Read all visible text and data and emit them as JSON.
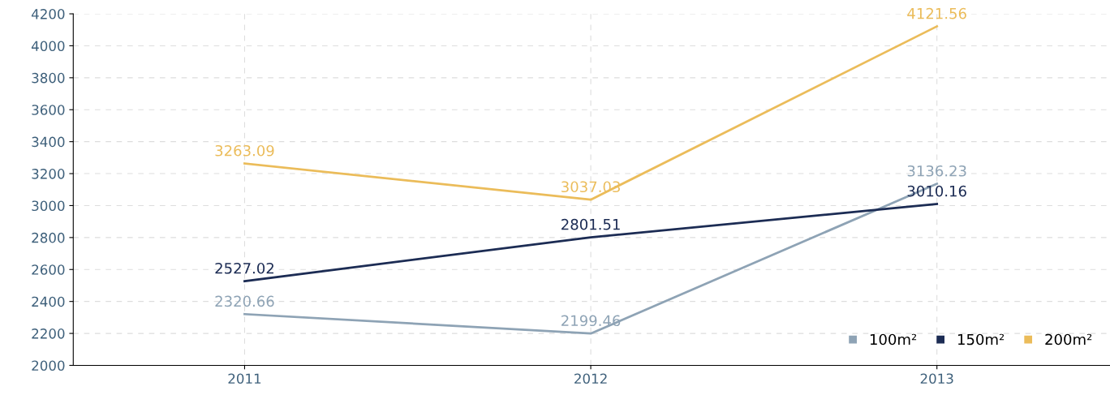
{
  "chart_data": {
    "type": "line",
    "categories": [
      "2011",
      "2012",
      "2013"
    ],
    "series": [
      {
        "name": "100m²",
        "color": "#8ea3b5",
        "values": [
          2320.66,
          2199.46,
          3136.23
        ]
      },
      {
        "name": "150m²",
        "color": "#1c2c54",
        "values": [
          2527.02,
          2801.51,
          3010.16
        ]
      },
      {
        "name": "200m²",
        "color": "#ebbc5a",
        "values": [
          3263.09,
          3037.03,
          4121.56
        ]
      }
    ],
    "ylim": [
      2000,
      4200
    ],
    "yticks": [
      2000,
      2200,
      2400,
      2600,
      2800,
      3000,
      3200,
      3400,
      3600,
      3800,
      4000,
      4200
    ],
    "grid": true,
    "legend": "bottom right",
    "data_labels": true,
    "marker": "none",
    "line_style": "solid"
  }
}
